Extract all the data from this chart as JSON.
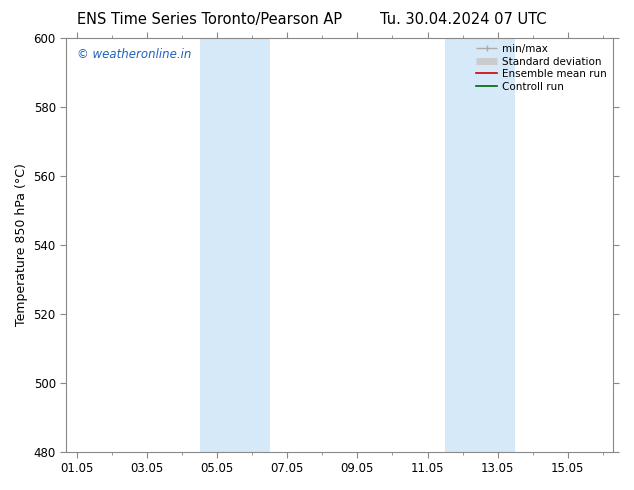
{
  "title_left": "ENS Time Series Toronto/Pearson AP",
  "title_right": "Tu. 30.04.2024 07 UTC",
  "ylabel": "Temperature 850 hPa (°C)",
  "watermark": "© weatheronline.in",
  "ylim": [
    480,
    600
  ],
  "yticks": [
    480,
    500,
    520,
    540,
    560,
    580,
    600
  ],
  "xtick_labels": [
    "01.05",
    "03.05",
    "05.05",
    "07.05",
    "09.05",
    "11.05",
    "13.05",
    "15.05"
  ],
  "xtick_positions": [
    0,
    2,
    4,
    6,
    8,
    10,
    12,
    14
  ],
  "xlim": [
    -0.3,
    15.3
  ],
  "shaded_regions": [
    {
      "start": 3.5,
      "end": 5.5,
      "color": "#d6e9f8"
    },
    {
      "start": 10.5,
      "end": 12.5,
      "color": "#d6e9f8"
    }
  ],
  "background_color": "#ffffff",
  "tick_label_fontsize": 8.5,
  "axis_label_fontsize": 9,
  "title_fontsize": 10.5,
  "watermark_color": "#2060c0",
  "watermark_fontsize": 8.5,
  "legend_fontsize": 7.5,
  "spine_color": "#888888"
}
